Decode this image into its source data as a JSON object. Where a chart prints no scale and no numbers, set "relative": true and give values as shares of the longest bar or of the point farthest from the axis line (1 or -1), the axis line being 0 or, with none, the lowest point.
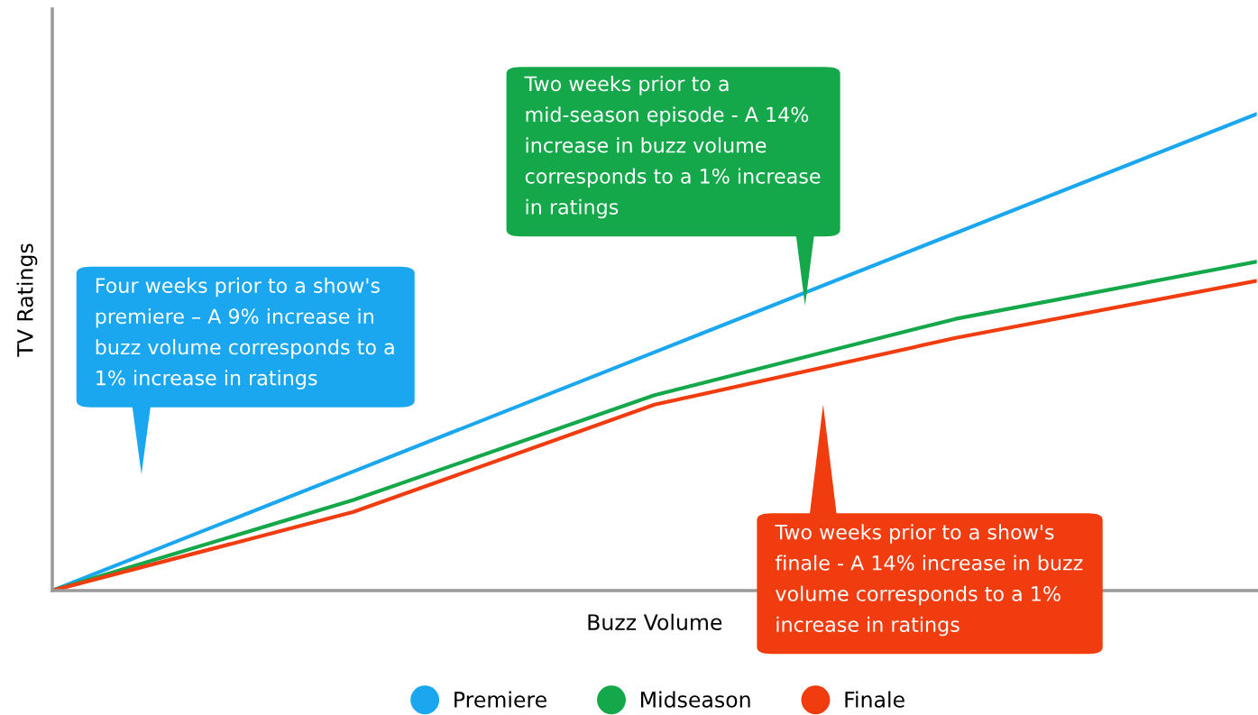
{
  "chart_data": {
    "type": "line",
    "relative": true,
    "xlabel": "Buzz Volume",
    "ylabel": "TV Ratings",
    "categories": [
      null,
      null,
      null,
      null,
      null
    ],
    "series": [
      {
        "name": "Premiere",
        "color": "#1aa7f0",
        "values": [
          0,
          0.25,
          0.5,
          0.75,
          1
        ]
      },
      {
        "name": "Midseason",
        "color": "#14a84a",
        "values": [
          0,
          0.19,
          0.41,
          0.57,
          0.69
        ]
      },
      {
        "name": "Finale",
        "color": "#f03c0f",
        "values": [
          0,
          0.165,
          0.39,
          0.53,
          0.65
        ]
      }
    ],
    "annotations": [
      "Four weeks prior to a show's premiere – A 9% increase in buzz volume corresponds to a 1% increase in ratings",
      "Two weeks prior to a mid-season episode - A 14% increase in buzz volume corresponds to a 1% increase in ratings",
      "Two weeks prior to a show's finale - A 14% increase in buzz volume corresponds to a 1% increase in ratings"
    ],
    "legend": "bottom",
    "grid": false,
    "marker": "none",
    "line_style": "solid"
  }
}
